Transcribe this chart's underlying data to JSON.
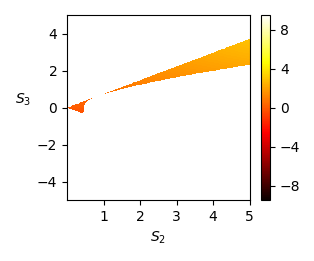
{
  "s2_min": 0.0,
  "s2_max": 5.0,
  "s3_min": -5.0,
  "s3_max": 5.0,
  "s2_ticks": [
    1,
    2,
    3,
    4,
    5
  ],
  "s3_ticks": [
    -4,
    -2,
    0,
    2,
    4
  ],
  "colorbar_ticks": [
    -8,
    -4,
    0,
    4,
    8
  ],
  "vmin": -9.5,
  "vmax": 9.5,
  "xlabel": "$S_2$",
  "ylabel": "$S_3$",
  "colormap": "hot",
  "n_points": 500,
  "figsize": [
    3.14,
    2.61
  ],
  "dpi": 100
}
